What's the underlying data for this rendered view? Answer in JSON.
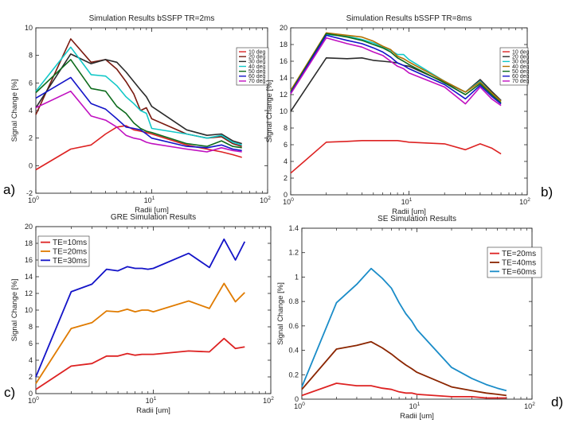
{
  "chart_data": [
    {
      "panel": "a)",
      "type": "line",
      "title": "Simulation Results bSSFP TR=2ms",
      "xlabel": "Radii [um]",
      "ylabel": "Signal Change [%]",
      "xscale": "log",
      "xlim": [
        1,
        100
      ],
      "ylim": [
        -2,
        10
      ],
      "x_ticks": [
        "10^0",
        "10^1",
        "10^2"
      ],
      "y_ticks": [
        -2,
        0,
        2,
        4,
        6,
        8,
        10
      ],
      "x": [
        1,
        2,
        3,
        4,
        5,
        6,
        7,
        8,
        9,
        10,
        20,
        30,
        40,
        50,
        60
      ],
      "legend_small": true,
      "series": [
        {
          "name": "10 deg",
          "color": "#dd2222",
          "values": [
            -0.3,
            1.2,
            1.5,
            2.3,
            2.8,
            2.9,
            2.6,
            2.5,
            2.4,
            2.3,
            1.5,
            1.2,
            1.0,
            0.8,
            0.6
          ]
        },
        {
          "name": "20 deg",
          "color": "#7a1a10",
          "values": [
            3.7,
            9.2,
            7.5,
            7.7,
            7.0,
            6.1,
            5.2,
            4.0,
            4.2,
            3.4,
            2.3,
            2.0,
            2.1,
            1.6,
            1.4
          ]
        },
        {
          "name": "30 deg",
          "color": "#2b2b2b",
          "values": [
            4.2,
            8.1,
            7.4,
            7.7,
            7.5,
            6.8,
            6.1,
            5.5,
            5.0,
            4.3,
            2.6,
            2.2,
            2.3,
            1.8,
            1.6
          ]
        },
        {
          "name": "40 deg",
          "color": "#12c8c8",
          "values": [
            5.4,
            8.6,
            6.6,
            6.5,
            5.8,
            5.0,
            4.5,
            4.0,
            3.8,
            2.7,
            2.3,
            2.0,
            2.2,
            1.7,
            1.5
          ]
        },
        {
          "name": "50 deg",
          "color": "#0d6b1c",
          "values": [
            5.3,
            7.7,
            5.6,
            5.4,
            4.3,
            3.8,
            3.1,
            2.7,
            2.5,
            2.4,
            1.6,
            1.4,
            1.8,
            1.4,
            1.3
          ]
        },
        {
          "name": "60 deg",
          "color": "#1414c8",
          "values": [
            4.9,
            6.4,
            4.5,
            4.1,
            3.4,
            2.8,
            2.7,
            2.6,
            2.3,
            2.0,
            1.4,
            1.3,
            1.5,
            1.2,
            1.1
          ]
        },
        {
          "name": "70 deg",
          "color": "#c010c0",
          "values": [
            4.2,
            5.4,
            3.6,
            3.3,
            2.8,
            2.2,
            2.0,
            1.9,
            1.7,
            1.6,
            1.2,
            1.0,
            1.3,
            1.1,
            1.0
          ]
        }
      ]
    },
    {
      "panel": "b)",
      "type": "line",
      "title": "Simulation Results bSSFP TR=8ms",
      "xlabel": "Radii [um]",
      "ylabel": "Signal Change [%]",
      "xscale": "log",
      "xlim": [
        1,
        100
      ],
      "ylim": [
        0,
        20
      ],
      "x_ticks": [
        "10^0",
        "10^1",
        "10^2"
      ],
      "y_ticks": [
        0,
        2,
        4,
        6,
        8,
        10,
        12,
        14,
        16,
        18,
        20
      ],
      "x": [
        1,
        2,
        3,
        4,
        5,
        6,
        7,
        8,
        9,
        10,
        20,
        30,
        40,
        50,
        60
      ],
      "legend_small": true,
      "series": [
        {
          "name": "10 deg",
          "color": "#dd2222",
          "values": [
            2.6,
            6.3,
            6.4,
            6.5,
            6.5,
            6.5,
            6.5,
            6.5,
            6.4,
            6.3,
            6.1,
            5.4,
            6.1,
            5.6,
            4.9
          ]
        },
        {
          "name": "20 deg",
          "color": "#2b2b2b",
          "values": [
            10.0,
            16.4,
            16.3,
            16.4,
            16.1,
            16.0,
            15.9,
            15.8,
            15.5,
            15.4,
            13.5,
            12.3,
            13.8,
            12.4,
            11.3
          ]
        },
        {
          "name": "30 deg",
          "color": "#12c8c8",
          "values": [
            12.5,
            19.2,
            19.0,
            18.6,
            18.2,
            17.7,
            17.3,
            16.8,
            16.8,
            16.2,
            13.6,
            12.3,
            13.6,
            12.2,
            11.2
          ]
        },
        {
          "name": "40 deg",
          "color": "#b37000",
          "values": [
            12.5,
            19.4,
            19.1,
            18.9,
            18.4,
            17.8,
            17.4,
            16.6,
            16.3,
            15.9,
            13.6,
            12.3,
            13.5,
            12.2,
            11.2
          ]
        },
        {
          "name": "50 deg",
          "color": "#0d6b1c",
          "values": [
            12.3,
            19.3,
            18.9,
            18.5,
            18.0,
            17.6,
            17.1,
            16.4,
            16.0,
            15.6,
            13.4,
            12.0,
            13.3,
            12.0,
            11.0
          ]
        },
        {
          "name": "60 deg",
          "color": "#1414c8",
          "values": [
            12.2,
            19.1,
            18.5,
            18.1,
            17.6,
            17.1,
            16.5,
            15.8,
            15.5,
            15.1,
            13.2,
            11.5,
            13.1,
            11.8,
            10.9
          ]
        },
        {
          "name": "70 deg",
          "color": "#c010c0",
          "values": [
            12.1,
            18.8,
            18.1,
            17.7,
            17.1,
            16.7,
            16.0,
            15.4,
            15.1,
            14.6,
            12.9,
            10.9,
            12.9,
            11.5,
            10.7
          ]
        }
      ]
    },
    {
      "panel": "c)",
      "type": "line",
      "title": "GRE Simulation Results",
      "xlabel": "Radii [um]",
      "ylabel": "Signal Change [%]",
      "xscale": "log",
      "xlim": [
        1,
        100
      ],
      "ylim": [
        0,
        20
      ],
      "x_ticks": [
        "10^0",
        "10^1",
        "10^2"
      ],
      "y_ticks": [
        0,
        2,
        4,
        6,
        8,
        10,
        12,
        14,
        16,
        18,
        20
      ],
      "x": [
        1,
        2,
        3,
        4,
        5,
        6,
        7,
        8,
        9,
        10,
        20,
        30,
        40,
        50,
        60
      ],
      "legend_small": false,
      "series": [
        {
          "name": "TE=10ms",
          "color": "#dd2222",
          "values": [
            0.5,
            3.3,
            3.6,
            4.5,
            4.5,
            4.8,
            4.6,
            4.7,
            4.7,
            4.7,
            5.1,
            5.0,
            6.6,
            5.4,
            5.6
          ]
        },
        {
          "name": "TE=20ms",
          "color": "#e07b00",
          "values": [
            1.2,
            7.8,
            8.5,
            9.9,
            9.8,
            10.1,
            9.8,
            10.0,
            10.0,
            9.8,
            11.1,
            10.2,
            13.2,
            11.0,
            12.1
          ]
        },
        {
          "name": "TE=30ms",
          "color": "#1414c8",
          "values": [
            2.0,
            12.2,
            13.1,
            14.9,
            14.7,
            15.2,
            15.0,
            15.0,
            14.9,
            15.0,
            16.8,
            15.1,
            18.5,
            16.0,
            18.2
          ]
        }
      ]
    },
    {
      "panel": "d)",
      "type": "line",
      "title": "SE Simulation Results",
      "xlabel": "Radii [um]",
      "ylabel": "Signal Change [%]",
      "xscale": "log",
      "xlim": [
        1,
        100
      ],
      "ylim": [
        0,
        1.4
      ],
      "x_ticks": [
        "10^0",
        "10^1",
        "10^2"
      ],
      "y_ticks": [
        0,
        0.2,
        0.4,
        0.6,
        0.8,
        1,
        1.2,
        1.4
      ],
      "x": [
        1,
        2,
        3,
        4,
        5,
        6,
        7,
        8,
        9,
        10,
        20,
        30,
        40,
        50,
        60
      ],
      "legend_small": false,
      "series": [
        {
          "name": "TE=20ms",
          "color": "#dd2222",
          "values": [
            0.03,
            0.13,
            0.11,
            0.11,
            0.09,
            0.08,
            0.06,
            0.05,
            0.05,
            0.04,
            0.02,
            0.02,
            0.01,
            0.01,
            0.01
          ]
        },
        {
          "name": "TE=40ms",
          "color": "#8b2500",
          "values": [
            0.08,
            0.41,
            0.44,
            0.47,
            0.42,
            0.37,
            0.32,
            0.28,
            0.25,
            0.22,
            0.1,
            0.07,
            0.05,
            0.04,
            0.03
          ]
        },
        {
          "name": "TE=60ms",
          "color": "#1a8cc8",
          "values": [
            0.1,
            0.79,
            0.94,
            1.07,
            0.99,
            0.91,
            0.79,
            0.7,
            0.64,
            0.57,
            0.26,
            0.17,
            0.12,
            0.09,
            0.07
          ]
        }
      ]
    }
  ]
}
